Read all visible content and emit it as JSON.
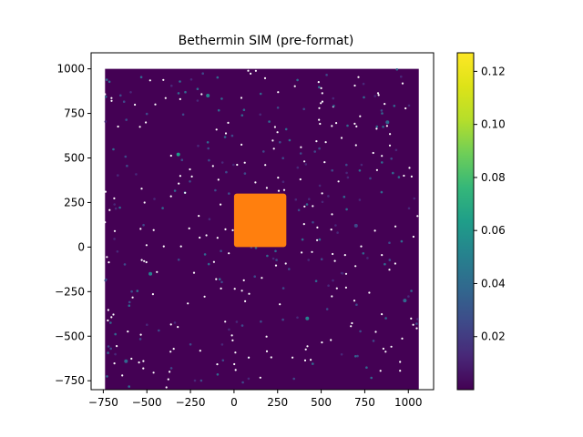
{
  "chart_data": {
    "type": "scatter",
    "title": "Bethermin SIM (pre-format)",
    "xlabel": "",
    "ylabel": "",
    "xlim": [
      -820,
      1145
    ],
    "ylim": [
      1090,
      -800
    ],
    "x_inverted": false,
    "y_inverted": true,
    "grid": false,
    "xticks": [
      -750,
      -500,
      -250,
      0,
      250,
      500,
      750,
      1000
    ],
    "yticks": [
      -750,
      -500,
      -250,
      0,
      250,
      500,
      750,
      1000
    ],
    "x_tick_labels": [
      "−750",
      "−500",
      "−250",
      "0",
      "250",
      "500",
      "750",
      "1000"
    ],
    "y_tick_labels": [
      "−750",
      "−500",
      "−250",
      "0",
      "250",
      "500",
      "750",
      "1000"
    ],
    "series": [
      {
        "kind": "dense-scatter",
        "x_range": [
          -740,
          1060
        ],
        "y_range": [
          -800,
          1000
        ],
        "value_range": [
          0.0,
          0.125
        ],
        "colormap": "viridis",
        "highlighted_points": [
          {
            "x": -620,
            "y": -640,
            "value": 0.04
          },
          {
            "x": -480,
            "y": -150,
            "value": 0.05
          },
          {
            "x": -320,
            "y": 520,
            "value": 0.06
          },
          {
            "x": 880,
            "y": 700,
            "value": 0.035
          },
          {
            "x": 420,
            "y": -400,
            "value": 0.05
          },
          {
            "x": 700,
            "y": 120,
            "value": 0.03
          },
          {
            "x": -150,
            "y": 850,
            "value": 0.045
          },
          {
            "x": 980,
            "y": -300,
            "value": 0.04
          }
        ]
      },
      {
        "kind": "square-region",
        "x_range": [
          0,
          300
        ],
        "y_range": [
          0,
          300
        ],
        "color": "#ff7f0e"
      }
    ],
    "colorbar": {
      "colormap": "viridis",
      "range": [
        0.0,
        0.127
      ],
      "ticks": [
        0.02,
        0.04,
        0.06,
        0.08,
        0.1,
        0.12
      ],
      "tick_labels": [
        "0.02",
        "0.04",
        "0.06",
        "0.08",
        "0.10",
        "0.12"
      ]
    }
  }
}
